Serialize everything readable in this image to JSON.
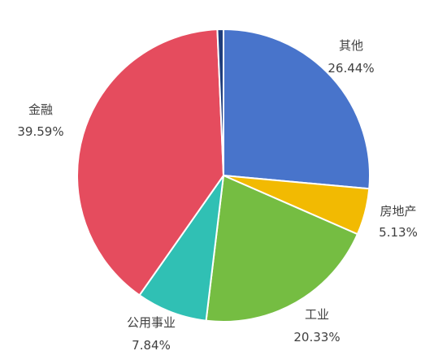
{
  "chart_data": {
    "type": "pie",
    "slices": [
      {
        "name": "其他",
        "value": 26.44,
        "label": "26.44%",
        "color": "#4874CB"
      },
      {
        "name": "房地产",
        "value": 5.13,
        "label": "5.13%",
        "color": "#F2BA02"
      },
      {
        "name": "工业",
        "value": 20.33,
        "label": "20.33%",
        "color": "#75BD42"
      },
      {
        "name": "公用事业",
        "value": 7.84,
        "label": "7.84%",
        "color": "#30C0B4"
      },
      {
        "name": "金融",
        "value": 39.59,
        "label": "39.59%",
        "color": "#E54C5E"
      },
      {
        "name": "",
        "value": 0.67,
        "label": "",
        "color": "#1F3E7C"
      }
    ],
    "start_angle_deg": 0,
    "direction": "clockwise",
    "legend": "none"
  }
}
